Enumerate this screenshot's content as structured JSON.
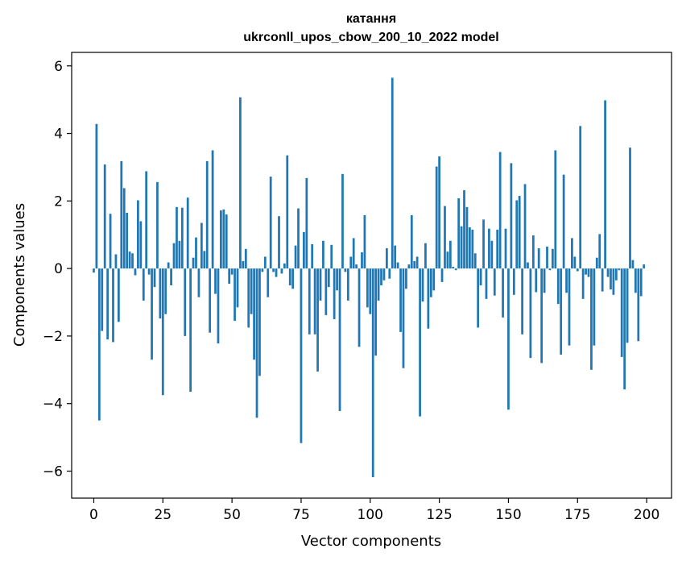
{
  "chart_data": {
    "type": "bar",
    "title": "катання",
    "subtitle": "ukrconll_upos_cbow_200_10_2022 model",
    "xlabel": "Vector components",
    "ylabel": "Components values",
    "xlim": [
      -8,
      209
    ],
    "ylim": [
      -6.8,
      6.4
    ],
    "xticks": [
      0,
      25,
      50,
      75,
      100,
      125,
      150,
      175,
      200
    ],
    "yticks": [
      -6,
      -4,
      -2,
      0,
      2,
      4,
      6
    ],
    "ytick_labels": [
      "−6",
      "−4",
      "−2",
      "0",
      "2",
      "4",
      "6"
    ],
    "grid": false,
    "bar_color": "#1f77b4",
    "x": [
      0,
      1,
      2,
      3,
      4,
      5,
      6,
      7,
      8,
      9,
      10,
      11,
      12,
      13,
      14,
      15,
      16,
      17,
      18,
      19,
      20,
      21,
      22,
      23,
      24,
      25,
      26,
      27,
      28,
      29,
      30,
      31,
      32,
      33,
      34,
      35,
      36,
      37,
      38,
      39,
      40,
      41,
      42,
      43,
      44,
      45,
      46,
      47,
      48,
      49,
      50,
      51,
      52,
      53,
      54,
      55,
      56,
      57,
      58,
      59,
      60,
      61,
      62,
      63,
      64,
      65,
      66,
      67,
      68,
      69,
      70,
      71,
      72,
      73,
      74,
      75,
      76,
      77,
      78,
      79,
      80,
      81,
      82,
      83,
      84,
      85,
      86,
      87,
      88,
      89,
      90,
      91,
      92,
      93,
      94,
      95,
      96,
      97,
      98,
      99,
      100,
      101,
      102,
      103,
      104,
      105,
      106,
      107,
      108,
      109,
      110,
      111,
      112,
      113,
      114,
      115,
      116,
      117,
      118,
      119,
      120,
      121,
      122,
      123,
      124,
      125,
      126,
      127,
      128,
      129,
      130,
      131,
      132,
      133,
      134,
      135,
      136,
      137,
      138,
      139,
      140,
      141,
      142,
      143,
      144,
      145,
      146,
      147,
      148,
      149,
      150,
      151,
      152,
      153,
      154,
      155,
      156,
      157,
      158,
      159,
      160,
      161,
      162,
      163,
      164,
      165,
      166,
      167,
      168,
      169,
      170,
      171,
      172,
      173,
      174,
      175,
      176,
      177,
      178,
      179,
      180,
      181,
      182,
      183,
      184,
      185,
      186,
      187,
      188,
      189,
      190,
      191,
      192,
      193,
      194,
      195,
      196,
      197,
      198,
      199
    ],
    "values": [
      -0.12,
      4.28,
      -4.5,
      -1.85,
      3.08,
      -2.1,
      1.62,
      -2.18,
      0.42,
      -1.58,
      3.18,
      2.38,
      1.65,
      0.5,
      0.45,
      -0.2,
      2.02,
      1.4,
      -0.95,
      2.88,
      -0.18,
      -2.7,
      -0.55,
      2.56,
      -1.48,
      -3.75,
      -1.35,
      0.18,
      -0.5,
      0.75,
      1.82,
      0.82,
      1.8,
      -2.0,
      2.1,
      -3.65,
      0.32,
      0.92,
      -0.85,
      1.35,
      0.52,
      3.18,
      -1.9,
      3.5,
      -0.75,
      -2.22,
      1.72,
      1.75,
      1.6,
      -0.45,
      -0.18,
      -1.55,
      -1.15,
      5.07,
      0.22,
      0.58,
      -1.75,
      -1.35,
      -2.7,
      -4.42,
      -3.18,
      -0.1,
      0.35,
      -0.85,
      2.72,
      -0.1,
      -0.25,
      1.55,
      -0.15,
      0.15,
      3.35,
      -0.5,
      -0.6,
      0.68,
      1.78,
      -5.17,
      1.08,
      2.68,
      -1.95,
      0.72,
      -1.95,
      -3.05,
      -0.95,
      0.82,
      -1.38,
      -0.55,
      0.7,
      -1.5,
      -0.65,
      -4.22,
      2.8,
      -0.1,
      -0.95,
      0.35,
      0.9,
      0.12,
      -2.32,
      0.48,
      1.58,
      -1.15,
      -1.35,
      -6.18,
      -2.58,
      -0.95,
      -0.5,
      -0.35,
      0.6,
      -0.3,
      5.65,
      0.68,
      0.18,
      -1.88,
      -2.95,
      -0.6,
      0.12,
      1.58,
      0.22,
      0.35,
      -4.38,
      -0.98,
      0.75,
      -1.78,
      -0.85,
      -0.65,
      3.02,
      3.32,
      -0.4,
      1.85,
      0.5,
      0.82,
      0.05,
      -0.05,
      2.08,
      1.25,
      2.32,
      1.82,
      1.22,
      1.15,
      0.45,
      -1.75,
      -0.5,
      1.45,
      -0.9,
      1.18,
      0.82,
      -0.8,
      1.15,
      3.45,
      -1.45,
      1.18,
      -4.18,
      3.12,
      -0.78,
      2.02,
      2.15,
      -1.95,
      2.5,
      0.18,
      -2.65,
      0.98,
      -0.7,
      0.6,
      -2.8,
      -0.72,
      0.65,
      -0.05,
      0.58,
      3.5,
      -1.05,
      -2.55,
      2.78,
      -0.72,
      -2.28,
      0.9,
      0.35,
      -0.08,
      4.22,
      -0.9,
      -0.18,
      -0.25,
      -3.0,
      -2.28,
      0.32,
      1.02,
      -0.68,
      4.98,
      -0.25,
      -0.62,
      -0.78,
      -0.35,
      -0.05,
      -2.62,
      -3.58,
      -2.2,
      3.58,
      0.25,
      -0.72,
      -2.15,
      -0.82,
      0.12
    ]
  }
}
